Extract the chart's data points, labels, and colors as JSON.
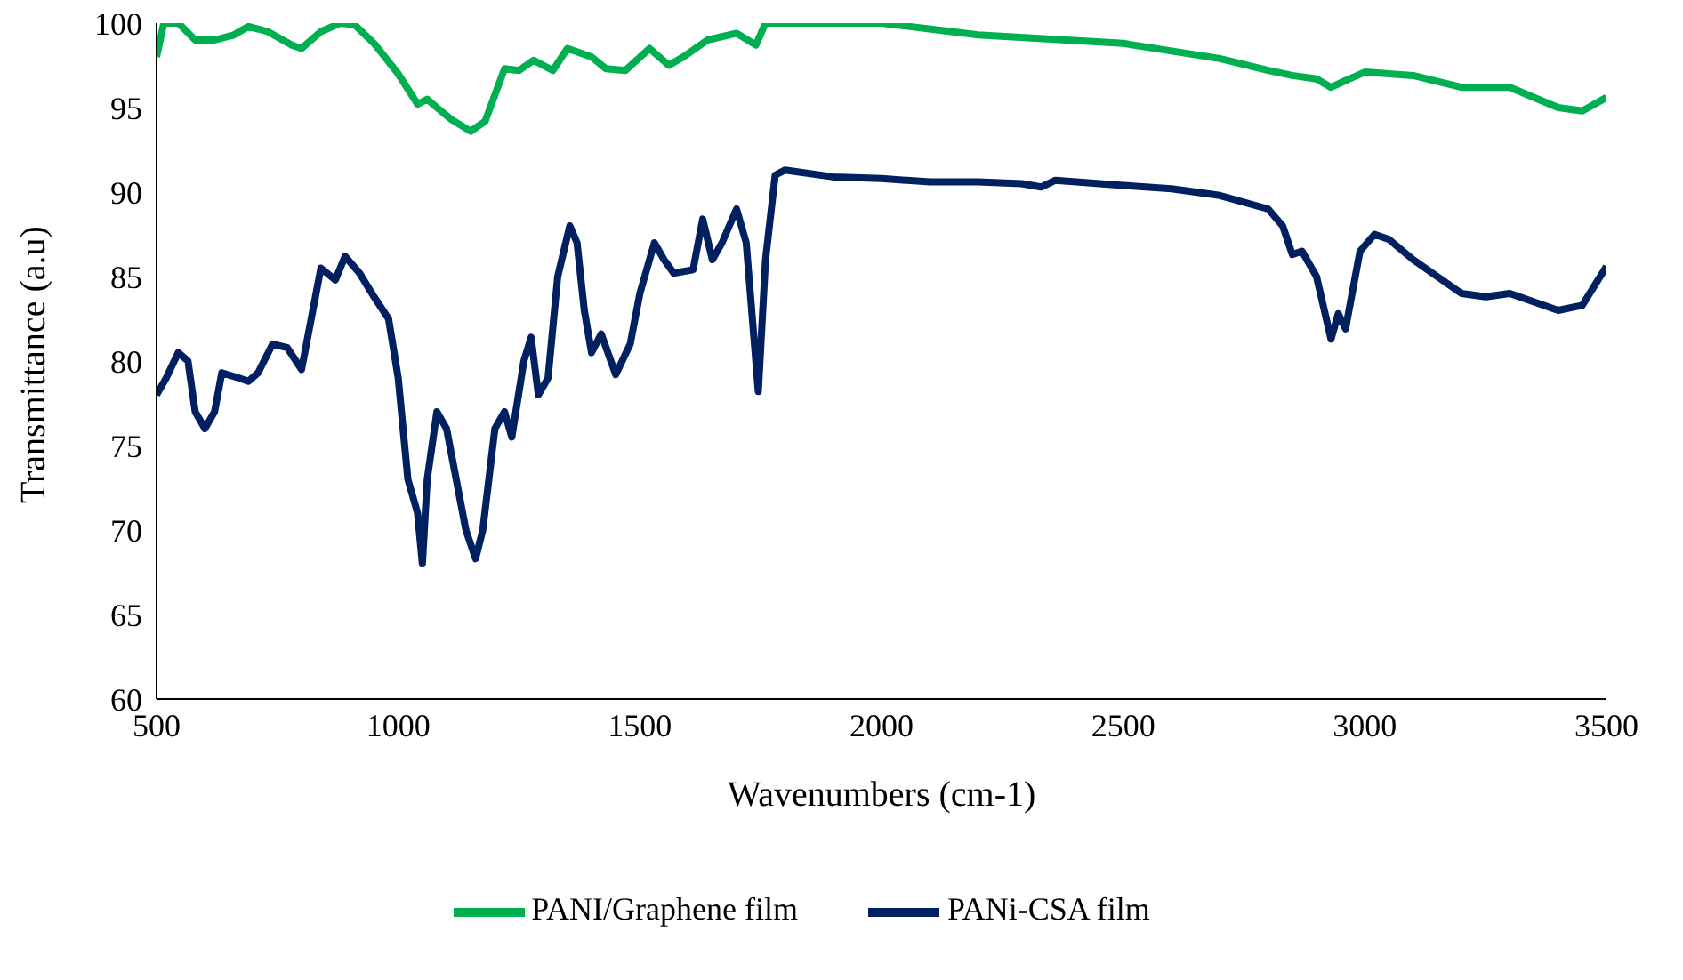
{
  "chart_data": {
    "type": "line",
    "xlabel": "Wavenumbers (cm-1)",
    "ylabel": "Transmittance (a.u)",
    "xlim": [
      500,
      3500
    ],
    "xticks": [
      500,
      1000,
      1500,
      2000,
      2500,
      3000,
      3500
    ],
    "ylim": [
      60,
      100
    ],
    "yticks": [
      60,
      65,
      70,
      75,
      80,
      85,
      90,
      95,
      100
    ],
    "grid": false,
    "legend": "bottom",
    "marker": "none",
    "line_style": "solid",
    "series": [
      {
        "name": "PANi-CSA film",
        "color": "#002060",
        "x": [
          500,
          520,
          545,
          565,
          580,
          600,
          620,
          635,
          670,
          690,
          710,
          740,
          770,
          800,
          840,
          870,
          890,
          920,
          950,
          980,
          1000,
          1020,
          1040,
          1050,
          1060,
          1080,
          1100,
          1120,
          1140,
          1160,
          1175,
          1200,
          1220,
          1235,
          1260,
          1275,
          1290,
          1310,
          1330,
          1355,
          1370,
          1385,
          1400,
          1420,
          1450,
          1480,
          1500,
          1530,
          1550,
          1570,
          1610,
          1630,
          1650,
          1670,
          1700,
          1720,
          1745,
          1760,
          1780,
          1800,
          1900,
          2000,
          2100,
          2200,
          2290,
          2330,
          2360,
          2500,
          2600,
          2700,
          2800,
          2830,
          2850,
          2870,
          2900,
          2930,
          2945,
          2960,
          2990,
          3020,
          3050,
          3100,
          3150,
          3200,
          3250,
          3300,
          3350,
          3400,
          3450,
          3500
        ],
        "values": [
          78,
          79,
          80.5,
          80,
          77,
          76,
          77,
          79.3,
          79,
          78.8,
          79.3,
          81,
          80.8,
          79.5,
          85.5,
          84.8,
          86.2,
          85.2,
          83.8,
          82.5,
          79,
          73,
          71,
          68,
          73,
          77,
          76,
          73,
          70,
          68.3,
          70,
          76,
          77,
          75.5,
          80,
          81.4,
          78,
          79,
          85,
          88,
          87,
          83,
          80.5,
          81.6,
          79.2,
          81,
          84,
          87,
          86,
          85.2,
          85.4,
          88.4,
          86,
          87,
          89,
          87,
          78.2,
          86,
          91,
          91.3,
          90.9,
          90.8,
          90.6,
          90.6,
          90.5,
          90.3,
          90.7,
          90.4,
          90.2,
          89.8,
          89,
          88,
          86.3,
          86.5,
          85,
          81.3,
          82.8,
          81.9,
          86.5,
          87.5,
          87.2,
          86,
          85,
          84,
          83.8,
          84,
          83.5,
          83,
          83.3,
          85.6
        ]
      },
      {
        "name": "PANI/Graphene film",
        "color": "#00b050",
        "x": [
          500,
          515,
          545,
          580,
          620,
          660,
          690,
          730,
          780,
          800,
          840,
          880,
          910,
          950,
          1000,
          1040,
          1060,
          1080,
          1110,
          1150,
          1180,
          1220,
          1250,
          1280,
          1320,
          1350,
          1400,
          1430,
          1470,
          1520,
          1560,
          1590,
          1640,
          1700,
          1740,
          1760,
          2000,
          2200,
          2500,
          2700,
          2800,
          2850,
          2900,
          2930,
          2960,
          3000,
          3100,
          3200,
          3300,
          3400,
          3450,
          3500
        ],
        "values": [
          98,
          100,
          100,
          99,
          99,
          99.3,
          99.8,
          99.5,
          98.7,
          98.5,
          99.5,
          100,
          99.9,
          98.8,
          97,
          95.2,
          95.5,
          95,
          94.3,
          93.6,
          94.2,
          97.3,
          97.2,
          97.8,
          97.2,
          98.5,
          98,
          97.3,
          97.2,
          98.5,
          97.5,
          98,
          99,
          99.4,
          98.7,
          100,
          100,
          99.3,
          98.8,
          97.9,
          97.2,
          96.9,
          96.7,
          96.2,
          96.6,
          97.1,
          96.9,
          96.2,
          96.2,
          95,
          94.8,
          95.6
        ]
      }
    ]
  }
}
